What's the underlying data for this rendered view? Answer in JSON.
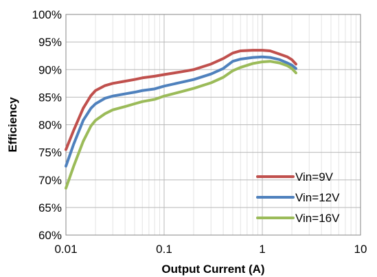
{
  "chart_data": {
    "type": "line",
    "title": "",
    "xlabel": "Output Current (A)",
    "ylabel": "Efficiency",
    "xscale": "log",
    "xlim": [
      0.01,
      10
    ],
    "ylim": [
      60,
      100
    ],
    "x_tick_labels": [
      "0.01",
      "0.1",
      "1",
      "10"
    ],
    "x_tick_values": [
      0.01,
      0.1,
      1,
      10
    ],
    "y_tick_labels": [
      "60%",
      "65%",
      "70%",
      "75%",
      "80%",
      "85%",
      "90%",
      "95%",
      "100%"
    ],
    "y_tick_values": [
      60,
      65,
      70,
      75,
      80,
      85,
      90,
      95,
      100
    ],
    "grid": true,
    "legend_position": "bottom-right",
    "series": [
      {
        "name": "Vin=9V",
        "color": "#C0504D",
        "points": [
          [
            0.01,
            75.5
          ],
          [
            0.012,
            79.0
          ],
          [
            0.015,
            83.0
          ],
          [
            0.018,
            85.3
          ],
          [
            0.02,
            86.2
          ],
          [
            0.025,
            87.1
          ],
          [
            0.03,
            87.5
          ],
          [
            0.04,
            87.9
          ],
          [
            0.05,
            88.2
          ],
          [
            0.06,
            88.5
          ],
          [
            0.08,
            88.8
          ],
          [
            0.1,
            89.1
          ],
          [
            0.15,
            89.6
          ],
          [
            0.2,
            90.0
          ],
          [
            0.3,
            91.0
          ],
          [
            0.4,
            92.0
          ],
          [
            0.5,
            93.0
          ],
          [
            0.6,
            93.4
          ],
          [
            0.8,
            93.5
          ],
          [
            1.0,
            93.5
          ],
          [
            1.2,
            93.4
          ],
          [
            1.5,
            92.8
          ],
          [
            1.8,
            92.3
          ],
          [
            2.0,
            91.8
          ],
          [
            2.2,
            91.0
          ]
        ]
      },
      {
        "name": "Vin=12V",
        "color": "#4F81BD",
        "points": [
          [
            0.01,
            72.5
          ],
          [
            0.012,
            76.5
          ],
          [
            0.015,
            80.8
          ],
          [
            0.018,
            83.0
          ],
          [
            0.02,
            83.8
          ],
          [
            0.025,
            84.8
          ],
          [
            0.03,
            85.2
          ],
          [
            0.04,
            85.6
          ],
          [
            0.05,
            85.9
          ],
          [
            0.06,
            86.2
          ],
          [
            0.08,
            86.5
          ],
          [
            0.1,
            87.0
          ],
          [
            0.15,
            87.7
          ],
          [
            0.2,
            88.2
          ],
          [
            0.3,
            89.2
          ],
          [
            0.4,
            90.2
          ],
          [
            0.5,
            91.5
          ],
          [
            0.6,
            91.9
          ],
          [
            0.8,
            92.2
          ],
          [
            1.0,
            92.3
          ],
          [
            1.2,
            92.2
          ],
          [
            1.5,
            91.8
          ],
          [
            1.8,
            91.2
          ],
          [
            2.0,
            90.8
          ],
          [
            2.2,
            90.2
          ]
        ]
      },
      {
        "name": "Vin=16V",
        "color": "#9BBB59",
        "points": [
          [
            0.01,
            68.5
          ],
          [
            0.012,
            72.5
          ],
          [
            0.015,
            77.0
          ],
          [
            0.018,
            79.8
          ],
          [
            0.02,
            80.8
          ],
          [
            0.025,
            82.0
          ],
          [
            0.03,
            82.7
          ],
          [
            0.04,
            83.3
          ],
          [
            0.05,
            83.8
          ],
          [
            0.06,
            84.2
          ],
          [
            0.08,
            84.6
          ],
          [
            0.1,
            85.2
          ],
          [
            0.15,
            86.0
          ],
          [
            0.2,
            86.6
          ],
          [
            0.3,
            87.6
          ],
          [
            0.4,
            88.6
          ],
          [
            0.5,
            89.8
          ],
          [
            0.6,
            90.4
          ],
          [
            0.8,
            91.1
          ],
          [
            1.0,
            91.4
          ],
          [
            1.2,
            91.5
          ],
          [
            1.5,
            91.2
          ],
          [
            1.8,
            90.7
          ],
          [
            2.0,
            90.2
          ],
          [
            2.2,
            89.4
          ]
        ]
      }
    ]
  }
}
